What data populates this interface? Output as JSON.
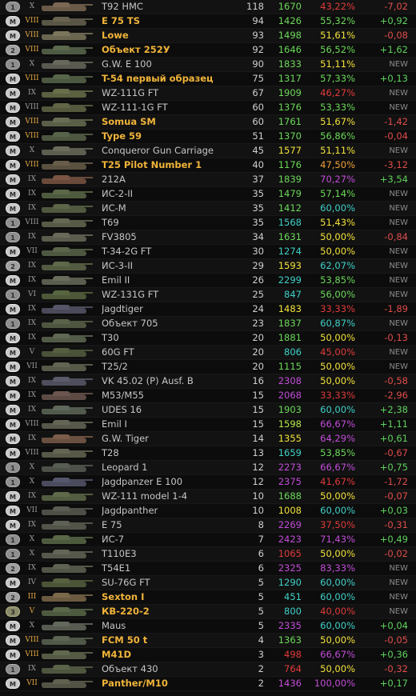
{
  "colors": {
    "tier_premium": "#e2a640",
    "tier_normal": "#9a9a9a",
    "delta_positive": "#5ed25e",
    "delta_negative": "#e04c4c",
    "delta_new": "#8a8a8a",
    "purple": "#c24dd8",
    "teal": "#3fd0c8",
    "green": "#6cd85a",
    "yellow": "#f2e23a",
    "orange": "#f0a23a",
    "red": "#e03a3a",
    "light_green": "#b6e84a"
  },
  "rows": [
    {
      "badge": "1",
      "tier": "X",
      "premium": false,
      "name": "T92 HMC",
      "battles": "118",
      "wn8": "1670",
      "wn8_color": "green",
      "winrate": "43,22%",
      "wr_color": "red",
      "delta": "-7,02",
      "delta_type": "negative",
      "tank_color": "#6a5a48"
    },
    {
      "badge": "M",
      "tier": "VIII",
      "premium": true,
      "name": "E 75 TS",
      "battles": "94",
      "wn8": "1426",
      "wn8_color": "green",
      "winrate": "55,32%",
      "wr_color": "green",
      "delta": "+0,92",
      "delta_type": "positive",
      "tank_color": "#5a5646"
    },
    {
      "badge": "M",
      "tier": "VIII",
      "premium": true,
      "name": "Lowe",
      "battles": "93",
      "wn8": "1498",
      "wn8_color": "green",
      "winrate": "51,61%",
      "wr_color": "yellow",
      "delta": "-0,08",
      "delta_type": "negative",
      "tank_color": "#6a6650"
    },
    {
      "badge": "2",
      "tier": "VIII",
      "premium": true,
      "name": "Объект 252У",
      "battles": "92",
      "wn8": "1646",
      "wn8_color": "green",
      "winrate": "56,52%",
      "wr_color": "green",
      "delta": "+1,62",
      "delta_type": "positive",
      "tank_color": "#4e5a44"
    },
    {
      "badge": "1",
      "tier": "X",
      "premium": false,
      "name": "G.W. E 100",
      "battles": "90",
      "wn8": "1833",
      "wn8_color": "green",
      "winrate": "51,11%",
      "wr_color": "yellow",
      "delta": "NEW",
      "delta_type": "new",
      "tank_color": "#5a5a50"
    },
    {
      "badge": "M",
      "tier": "VIII",
      "premium": true,
      "name": "T-54 первый образец",
      "battles": "75",
      "wn8": "1317",
      "wn8_color": "green",
      "winrate": "57,33%",
      "wr_color": "green",
      "delta": "+0,13",
      "delta_type": "positive",
      "tank_color": "#4c5840"
    },
    {
      "badge": "M",
      "tier": "IX",
      "premium": false,
      "name": "WZ-111G FT",
      "battles": "67",
      "wn8": "1909",
      "wn8_color": "green",
      "winrate": "46,27%",
      "wr_color": "red",
      "delta": "NEW",
      "delta_type": "new",
      "tank_color": "#5a6040"
    },
    {
      "badge": "M",
      "tier": "VIII",
      "premium": false,
      "name": "WZ-111-1G FT",
      "battles": "60",
      "wn8": "1376",
      "wn8_color": "green",
      "winrate": "53,33%",
      "wr_color": "green",
      "delta": "NEW",
      "delta_type": "new",
      "tank_color": "#54583c"
    },
    {
      "badge": "M",
      "tier": "VIII",
      "premium": true,
      "name": "Somua SM",
      "battles": "60",
      "wn8": "1761",
      "wn8_color": "green",
      "winrate": "51,67%",
      "wr_color": "yellow",
      "delta": "-1,42",
      "delta_type": "negative",
      "tank_color": "#5a6048"
    },
    {
      "badge": "M",
      "tier": "VIII",
      "premium": true,
      "name": "Type 59",
      "battles": "51",
      "wn8": "1370",
      "wn8_color": "green",
      "winrate": "56,86%",
      "wr_color": "green",
      "delta": "-0,04",
      "delta_type": "negative",
      "tank_color": "#4c5640"
    },
    {
      "badge": "M",
      "tier": "X",
      "premium": false,
      "name": "Conqueror Gun Carriage",
      "battles": "45",
      "wn8": "1577",
      "wn8_color": "yellow",
      "winrate": "51,11%",
      "wr_color": "yellow",
      "delta": "NEW",
      "delta_type": "new",
      "tank_color": "#5e5e50"
    },
    {
      "badge": "M",
      "tier": "VIII",
      "premium": true,
      "name": "T25 Pilot Number 1",
      "battles": "40",
      "wn8": "1176",
      "wn8_color": "green",
      "winrate": "47,50%",
      "wr_color": "orange",
      "delta": "-3,12",
      "delta_type": "negative",
      "tank_color": "#5a5040"
    },
    {
      "badge": "M",
      "tier": "IX",
      "premium": false,
      "name": "212A",
      "battles": "37",
      "wn8": "1839",
      "wn8_color": "green",
      "winrate": "70,27%",
      "wr_color": "purple",
      "delta": "+3,54",
      "delta_type": "positive",
      "tank_color": "#6a4a3a"
    },
    {
      "badge": "M",
      "tier": "IX",
      "premium": false,
      "name": "ИС-2-II",
      "battles": "35",
      "wn8": "1479",
      "wn8_color": "green",
      "winrate": "57,14%",
      "wr_color": "green",
      "delta": "NEW",
      "delta_type": "new",
      "tank_color": "#4e5a3e"
    },
    {
      "badge": "M",
      "tier": "IX",
      "premium": false,
      "name": "ИС-М",
      "battles": "35",
      "wn8": "1412",
      "wn8_color": "green",
      "winrate": "60,00%",
      "wr_color": "teal",
      "delta": "NEW",
      "delta_type": "new",
      "tank_color": "#50583e"
    },
    {
      "badge": "1",
      "tier": "VIII",
      "premium": false,
      "name": "T69",
      "battles": "35",
      "wn8": "1568",
      "wn8_color": "teal",
      "winrate": "51,43%",
      "wr_color": "yellow",
      "delta": "NEW",
      "delta_type": "new",
      "tank_color": "#585a48"
    },
    {
      "badge": "1",
      "tier": "IX",
      "premium": false,
      "name": "FV3805",
      "battles": "34",
      "wn8": "1631",
      "wn8_color": "green",
      "winrate": "50,00%",
      "wr_color": "yellow",
      "delta": "-0,84",
      "delta_type": "negative",
      "tank_color": "#5c5c4e"
    },
    {
      "badge": "M",
      "tier": "VII",
      "premium": false,
      "name": "T-34-2G FT",
      "battles": "30",
      "wn8": "1274",
      "wn8_color": "teal",
      "winrate": "50,00%",
      "wr_color": "yellow",
      "delta": "NEW",
      "delta_type": "new",
      "tank_color": "#4e5840"
    },
    {
      "badge": "2",
      "tier": "IX",
      "premium": false,
      "name": "ИС-3-II",
      "battles": "29",
      "wn8": "1593",
      "wn8_color": "yellow",
      "winrate": "62,07%",
      "wr_color": "teal",
      "delta": "NEW",
      "delta_type": "new",
      "tank_color": "#525a40"
    },
    {
      "badge": "M",
      "tier": "IX",
      "premium": false,
      "name": "Emil II",
      "battles": "26",
      "wn8": "2299",
      "wn8_color": "teal",
      "winrate": "53,85%",
      "wr_color": "green",
      "delta": "NEW",
      "delta_type": "new",
      "tank_color": "#5a5e4e"
    },
    {
      "badge": "1",
      "tier": "VI",
      "premium": false,
      "name": "WZ-131G FT",
      "battles": "25",
      "wn8": "847",
      "wn8_color": "teal",
      "winrate": "56,00%",
      "wr_color": "green",
      "delta": "NEW",
      "delta_type": "new",
      "tank_color": "#4c5838"
    },
    {
      "badge": "M",
      "tier": "IX",
      "premium": false,
      "name": "Jagdtiger",
      "battles": "24",
      "wn8": "1483",
      "wn8_color": "yellow",
      "winrate": "33,33%",
      "wr_color": "red",
      "delta": "-1,89",
      "delta_type": "negative",
      "tank_color": "#4a4a5a"
    },
    {
      "badge": "1",
      "tier": "IX",
      "premium": false,
      "name": "Объект 705",
      "battles": "23",
      "wn8": "1837",
      "wn8_color": "green",
      "winrate": "60,87%",
      "wr_color": "teal",
      "delta": "NEW",
      "delta_type": "new",
      "tank_color": "#4e5640"
    },
    {
      "badge": "M",
      "tier": "IX",
      "premium": false,
      "name": "T30",
      "battles": "20",
      "wn8": "1881",
      "wn8_color": "green",
      "winrate": "50,00%",
      "wr_color": "yellow",
      "delta": "-0,13",
      "delta_type": "negative",
      "tank_color": "#525a48"
    },
    {
      "badge": "M",
      "tier": "V",
      "premium": false,
      "name": "60G FT",
      "battles": "20",
      "wn8": "806",
      "wn8_color": "teal",
      "winrate": "45,00%",
      "wr_color": "red",
      "delta": "NEW",
      "delta_type": "new",
      "tank_color": "#4a5238"
    },
    {
      "badge": "M",
      "tier": "VII",
      "premium": false,
      "name": "T25/2",
      "battles": "20",
      "wn8": "1115",
      "wn8_color": "green",
      "winrate": "50,00%",
      "wr_color": "yellow",
      "delta": "NEW",
      "delta_type": "new",
      "tank_color": "#565848"
    },
    {
      "badge": "M",
      "tier": "IX",
      "premium": false,
      "name": "VK 45.02 (P) Ausf. B",
      "battles": "16",
      "wn8": "2308",
      "wn8_color": "purple",
      "winrate": "50,00%",
      "wr_color": "yellow",
      "delta": "-0,58",
      "delta_type": "negative",
      "tank_color": "#4e4e5c"
    },
    {
      "badge": "M",
      "tier": "IX",
      "premium": false,
      "name": "M53/M55",
      "battles": "15",
      "wn8": "2068",
      "wn8_color": "purple",
      "winrate": "33,33%",
      "wr_color": "red",
      "delta": "-2,96",
      "delta_type": "negative",
      "tank_color": "#5e4a44"
    },
    {
      "badge": "M",
      "tier": "IX",
      "premium": false,
      "name": "UDES 16",
      "battles": "15",
      "wn8": "1903",
      "wn8_color": "green",
      "winrate": "60,00%",
      "wr_color": "teal",
      "delta": "+2,38",
      "delta_type": "positive",
      "tank_color": "#525a4e"
    },
    {
      "badge": "M",
      "tier": "VIII",
      "premium": false,
      "name": "Emil I",
      "battles": "15",
      "wn8": "1598",
      "wn8_color": "light_green",
      "winrate": "66,67%",
      "wr_color": "purple",
      "delta": "+1,11",
      "delta_type": "positive",
      "tank_color": "#58584a"
    },
    {
      "badge": "M",
      "tier": "IX",
      "premium": false,
      "name": "G.W. Tiger",
      "battles": "14",
      "wn8": "1355",
      "wn8_color": "yellow",
      "winrate": "64,29%",
      "wr_color": "purple",
      "delta": "+0,61",
      "delta_type": "positive",
      "tank_color": "#6a5040"
    },
    {
      "badge": "M",
      "tier": "VIII",
      "premium": false,
      "name": "T28",
      "battles": "13",
      "wn8": "1659",
      "wn8_color": "teal",
      "winrate": "53,85%",
      "wr_color": "green",
      "delta": "-0,67",
      "delta_type": "negative",
      "tank_color": "#585848"
    },
    {
      "badge": "1",
      "tier": "X",
      "premium": false,
      "name": "Leopard 1",
      "battles": "12",
      "wn8": "2273",
      "wn8_color": "purple",
      "winrate": "66,67%",
      "wr_color": "purple",
      "delta": "+0,75",
      "delta_type": "positive",
      "tank_color": "#4c5048"
    },
    {
      "badge": "1",
      "tier": "X",
      "premium": false,
      "name": "Jagdpanzer E 100",
      "battles": "12",
      "wn8": "2375",
      "wn8_color": "purple",
      "winrate": "41,67%",
      "wr_color": "red",
      "delta": "-1,72",
      "delta_type": "negative",
      "tank_color": "#4a4c5e"
    },
    {
      "badge": "M",
      "tier": "IX",
      "premium": false,
      "name": "WZ-111 model 1-4",
      "battles": "10",
      "wn8": "1688",
      "wn8_color": "green",
      "winrate": "50,00%",
      "wr_color": "yellow",
      "delta": "-0,07",
      "delta_type": "negative",
      "tank_color": "#525c40"
    },
    {
      "badge": "M",
      "tier": "VII",
      "premium": false,
      "name": "Jagdpanther",
      "battles": "10",
      "wn8": "1008",
      "wn8_color": "yellow",
      "winrate": "60,00%",
      "wr_color": "teal",
      "delta": "+0,03",
      "delta_type": "positive",
      "tank_color": "#4e5048"
    },
    {
      "badge": "M",
      "tier": "IX",
      "premium": false,
      "name": "E 75",
      "battles": "8",
      "wn8": "2269",
      "wn8_color": "purple",
      "winrate": "37,50%",
      "wr_color": "red",
      "delta": "-0,31",
      "delta_type": "negative",
      "tank_color": "#52544a"
    },
    {
      "badge": "1",
      "tier": "X",
      "premium": false,
      "name": "ИС-7",
      "battles": "7",
      "wn8": "2423",
      "wn8_color": "purple",
      "winrate": "71,43%",
      "wr_color": "purple",
      "delta": "+0,49",
      "delta_type": "positive",
      "tank_color": "#4e5a3e"
    },
    {
      "badge": "1",
      "tier": "X",
      "premium": false,
      "name": "T110E3",
      "battles": "6",
      "wn8": "1065",
      "wn8_color": "red",
      "winrate": "50,00%",
      "wr_color": "yellow",
      "delta": "-0,02",
      "delta_type": "negative",
      "tank_color": "#56584c"
    },
    {
      "badge": "2",
      "tier": "IX",
      "premium": false,
      "name": "T54E1",
      "battles": "6",
      "wn8": "2325",
      "wn8_color": "purple",
      "winrate": "83,33%",
      "wr_color": "purple",
      "delta": "NEW",
      "delta_type": "new",
      "tank_color": "#525648"
    },
    {
      "badge": "M",
      "tier": "IV",
      "premium": false,
      "name": "SU-76G FT",
      "battles": "5",
      "wn8": "1290",
      "wn8_color": "teal",
      "winrate": "60,00%",
      "wr_color": "teal",
      "delta": "NEW",
      "delta_type": "new",
      "tank_color": "#4c5438"
    },
    {
      "badge": "2",
      "tier": "III",
      "premium": true,
      "name": "Sexton I",
      "battles": "5",
      "wn8": "451",
      "wn8_color": "teal",
      "winrate": "60,00%",
      "wr_color": "teal",
      "delta": "NEW",
      "delta_type": "new",
      "tank_color": "#6a5a40"
    },
    {
      "badge": "3",
      "tier": "V",
      "premium": true,
      "name": "КВ-220-2",
      "battles": "5",
      "wn8": "800",
      "wn8_color": "teal",
      "winrate": "40,00%",
      "wr_color": "red",
      "delta": "NEW",
      "delta_type": "new",
      "tank_color": "#4e5a40"
    },
    {
      "badge": "M",
      "tier": "X",
      "premium": false,
      "name": "Maus",
      "battles": "5",
      "wn8": "2335",
      "wn8_color": "purple",
      "winrate": "60,00%",
      "wr_color": "teal",
      "delta": "+0,04",
      "delta_type": "positive",
      "tank_color": "#565a50"
    },
    {
      "badge": "M",
      "tier": "VIII",
      "premium": true,
      "name": "FCM 50 t",
      "battles": "4",
      "wn8": "1363",
      "wn8_color": "green",
      "winrate": "50,00%",
      "wr_color": "yellow",
      "delta": "-0,05",
      "delta_type": "negative",
      "tank_color": "#505848"
    },
    {
      "badge": "M",
      "tier": "VIII",
      "premium": true,
      "name": "M41D",
      "battles": "3",
      "wn8": "498",
      "wn8_color": "red",
      "winrate": "66,67%",
      "wr_color": "purple",
      "delta": "+0,36",
      "delta_type": "positive",
      "tank_color": "#545a44"
    },
    {
      "badge": "1",
      "tier": "IX",
      "premium": false,
      "name": "Объект 430",
      "battles": "2",
      "wn8": "764",
      "wn8_color": "red",
      "winrate": "50,00%",
      "wr_color": "yellow",
      "delta": "-0,32",
      "delta_type": "negative",
      "tank_color": "#4e5640"
    },
    {
      "badge": "M",
      "tier": "VII",
      "premium": true,
      "name": "Panther/M10",
      "battles": "2",
      "wn8": "1436",
      "wn8_color": "purple",
      "winrate": "100,00%",
      "wr_color": "purple",
      "delta": "+0,17",
      "delta_type": "positive",
      "tank_color": "#545446"
    }
  ]
}
